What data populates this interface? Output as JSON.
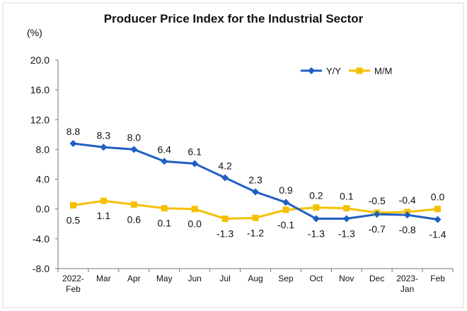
{
  "chart_data": {
    "type": "line",
    "title": "Producer Price Index for the Industrial Sector",
    "ylabel": "(%)",
    "xlabel": "",
    "ylim": [
      -8.0,
      20.0
    ],
    "yticks": [
      "20.0",
      "16.0",
      "12.0",
      "8.0",
      "4.0",
      "0.0",
      "-4.0",
      "-8.0"
    ],
    "ytick_values": [
      20,
      16,
      12,
      8,
      4,
      0,
      -4,
      -8
    ],
    "categories": [
      [
        "2022-",
        "Feb"
      ],
      [
        "Mar"
      ],
      [
        "Apr"
      ],
      [
        "May"
      ],
      [
        "Jun"
      ],
      [
        "Jul"
      ],
      [
        "Aug"
      ],
      [
        "Sep"
      ],
      [
        "Oct"
      ],
      [
        "Nov"
      ],
      [
        "Dec"
      ],
      [
        "2023-",
        "Jan"
      ],
      [
        "Feb"
      ]
    ],
    "legend_position": "top-right",
    "grid": false,
    "series": [
      {
        "name": "Y/Y",
        "color": "#1F5FC4",
        "marker": "diamond",
        "values": [
          8.8,
          8.3,
          8.0,
          6.4,
          6.1,
          4.2,
          2.3,
          0.9,
          -1.3,
          -1.3,
          -0.7,
          -0.8,
          -1.4
        ],
        "labels": [
          "8.8",
          "8.3",
          "8.0",
          "6.4",
          "6.1",
          "4.2",
          "2.3",
          "0.9",
          "-1.3",
          "-1.3",
          "-0.7",
          "-0.8",
          "-1.4"
        ]
      },
      {
        "name": "M/M",
        "color": "#F5C000",
        "marker": "square",
        "values": [
          0.5,
          1.1,
          0.6,
          0.1,
          0.0,
          -1.3,
          -1.2,
          -0.1,
          0.2,
          0.1,
          -0.5,
          -0.4,
          0.0
        ],
        "labels": [
          "0.5",
          "1.1",
          "0.6",
          "0.1",
          "0.0",
          "-1.3",
          "-1.2",
          "-0.1",
          "0.2",
          "0.1",
          "-0.5",
          "-0.4",
          "0.0"
        ]
      }
    ]
  }
}
